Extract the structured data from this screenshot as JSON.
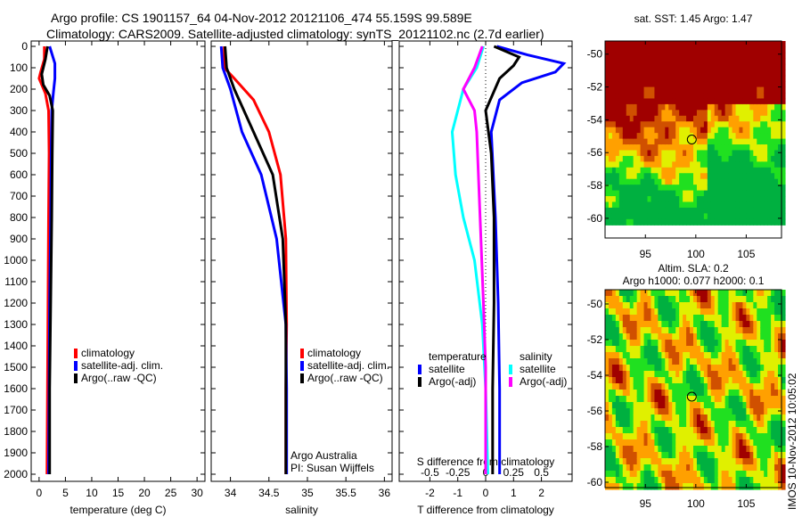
{
  "title_line1": "Argo profile: CS 1901157_64 04-Nov-2012 20121106_474 55.159S 99.589E",
  "title_line2": "Climatology: CARS2009. Satellite-adjusted climatology: synTS_20121102.nc (2.7d earlier)",
  "footer_stamp": "IMOS 10-Nov-2012 10:05:02",
  "chart_data": [
    {
      "type": "line",
      "name": "temperature",
      "xlabel": "temperature (deg C)",
      "xlim": [
        -1.5,
        31.5
      ],
      "ylim": [
        2050,
        0
      ],
      "xticks": [
        0,
        5,
        10,
        15,
        20,
        25,
        30
      ],
      "yticks": [
        0,
        100,
        200,
        300,
        400,
        500,
        600,
        700,
        800,
        900,
        1000,
        1100,
        1200,
        1300,
        1400,
        1500,
        1600,
        1700,
        1800,
        1900,
        2000
      ],
      "legend": [
        "climatology",
        "satellite-adj. clim.",
        "Argo(..raw -QC)"
      ],
      "series": [
        {
          "name": "climatology",
          "color": "#ff0000",
          "x": [
            1,
            1,
            0.3,
            0,
            1.2,
            1.8,
            1.9,
            1.8,
            1.7,
            1.6,
            1.5
          ],
          "y": [
            0,
            60,
            120,
            150,
            220,
            300,
            500,
            800,
            1200,
            1600,
            2000
          ]
        },
        {
          "name": "satellite-adj. clim.",
          "color": "#0000ff",
          "x": [
            2,
            2.5,
            3,
            3,
            2.7,
            2.4,
            2.3,
            2.2,
            2.0,
            1.9,
            1.8
          ],
          "y": [
            0,
            40,
            80,
            150,
            220,
            300,
            500,
            800,
            1200,
            1600,
            2000
          ]
        },
        {
          "name": "Argo(..raw -QC)",
          "color": "#000000",
          "x": [
            1.6,
            1.2,
            0.5,
            0.8,
            2.0,
            2.6,
            2.5,
            2.4,
            2.2,
            2.0,
            2.0
          ],
          "y": [
            0,
            60,
            130,
            180,
            230,
            300,
            500,
            800,
            1200,
            1600,
            2000
          ]
        }
      ]
    },
    {
      "type": "line",
      "name": "salinity",
      "xlabel": "salinity",
      "xlim": [
        33.75,
        36.1
      ],
      "ylim": [
        2050,
        0
      ],
      "xticks": [
        34,
        34.5,
        35,
        35.5,
        36
      ],
      "legend": [
        "climatology",
        "satellite-adj. clim.",
        "Argo(..raw -QC)"
      ],
      "annotation": [
        "Argo Australia",
        "PI: Susan Wijffels"
      ],
      "series": [
        {
          "name": "climatology",
          "color": "#ff0000",
          "x": [
            33.92,
            33.92,
            34.05,
            34.3,
            34.5,
            34.65,
            34.72,
            34.73,
            34.72,
            34.72
          ],
          "y": [
            0,
            100,
            150,
            250,
            400,
            600,
            900,
            1300,
            1600,
            2000
          ]
        },
        {
          "name": "satellite-adj. clim.",
          "color": "#0000ff",
          "x": [
            33.88,
            33.9,
            34.0,
            34.15,
            34.4,
            34.6,
            34.72,
            34.73,
            34.73
          ],
          "y": [
            0,
            100,
            200,
            400,
            600,
            900,
            1300,
            1600,
            2000
          ]
        },
        {
          "name": "Argo(..raw -QC)",
          "color": "#000000",
          "x": [
            33.93,
            33.95,
            34.05,
            34.3,
            34.55,
            34.68,
            34.72,
            34.72,
            34.72
          ],
          "y": [
            0,
            100,
            200,
            400,
            600,
            900,
            1300,
            1600,
            2000
          ]
        }
      ]
    },
    {
      "type": "line",
      "name": "difference",
      "xlabel": "T difference from climatology",
      "xlabel2": "S difference from climatology",
      "xlim": [
        -3.1,
        3.1
      ],
      "ylim": [
        2050,
        0
      ],
      "xticks": [
        -2,
        -1,
        0,
        1,
        2
      ],
      "xticks2": [
        -0.5,
        -0.25,
        0,
        0.25,
        0.5
      ],
      "legend_temperature": {
        "title": "temperature",
        "items": [
          "satellite",
          "Argo(-adj)"
        ]
      },
      "legend_salinity": {
        "title": "salinity",
        "items": [
          "satellite",
          "Argo(-adj)"
        ]
      },
      "series": [
        {
          "name": "T satellite",
          "units": "T",
          "color": "#0000ff",
          "x": [
            0.4,
            1.5,
            2.8,
            2.5,
            1.3,
            0.5,
            0.2,
            0.35,
            0.45,
            0.5,
            0.5
          ],
          "y": [
            0,
            40,
            80,
            120,
            170,
            250,
            400,
            800,
            1200,
            1600,
            2000
          ]
        },
        {
          "name": "T Argo(-adj)",
          "units": "T",
          "color": "#000000",
          "x": [
            0.3,
            1.2,
            1.0,
            0.5,
            0.0,
            0.1,
            0.2,
            0.3,
            0.3,
            0.25,
            0.25
          ],
          "y": [
            0,
            50,
            90,
            150,
            300,
            400,
            500,
            800,
            1200,
            1600,
            2000
          ]
        },
        {
          "name": "S satellite",
          "units": "S",
          "color": "#00ffff",
          "x": [
            -0.02,
            -0.08,
            -0.2,
            -0.25,
            -0.3,
            -0.27,
            -0.2,
            -0.1,
            -0.03,
            0,
            0.02
          ],
          "y": [
            0,
            100,
            200,
            300,
            400,
            600,
            800,
            1000,
            1300,
            1600,
            2000
          ]
        },
        {
          "name": "S Argo(-adj)",
          "units": "S",
          "color": "#ff00ff",
          "x": [
            -0.03,
            -0.1,
            -0.2,
            -0.1,
            -0.08,
            -0.05,
            -0.02,
            0,
            0
          ],
          "y": [
            0,
            100,
            200,
            300,
            400,
            800,
            1200,
            1500,
            2000
          ]
        }
      ]
    },
    {
      "type": "heatmap",
      "title": "sat. SST: 1.45 Argo: 1.47",
      "xlim": [
        91,
        108.5
      ],
      "ylim": [
        -61.2,
        -49.2
      ],
      "xticks": [
        95,
        100,
        105
      ],
      "yticks": [
        -50,
        -52,
        -54,
        -56,
        -58,
        -60
      ],
      "marker": [
        99.6,
        -55.2
      ],
      "field": "sst"
    },
    {
      "type": "heatmap",
      "title": "Altim. SLA: 0.2",
      "subtitle": "Argo h1000: 0.077 h2000: 0.1",
      "xlim": [
        91,
        108.5
      ],
      "ylim": [
        -60.3,
        -49.2
      ],
      "xticks": [
        95,
        100,
        105
      ],
      "yticks": [
        -50,
        -52,
        -54,
        -56,
        -58,
        -60
      ],
      "marker": [
        99.6,
        -55.2
      ],
      "field": "sla"
    }
  ]
}
